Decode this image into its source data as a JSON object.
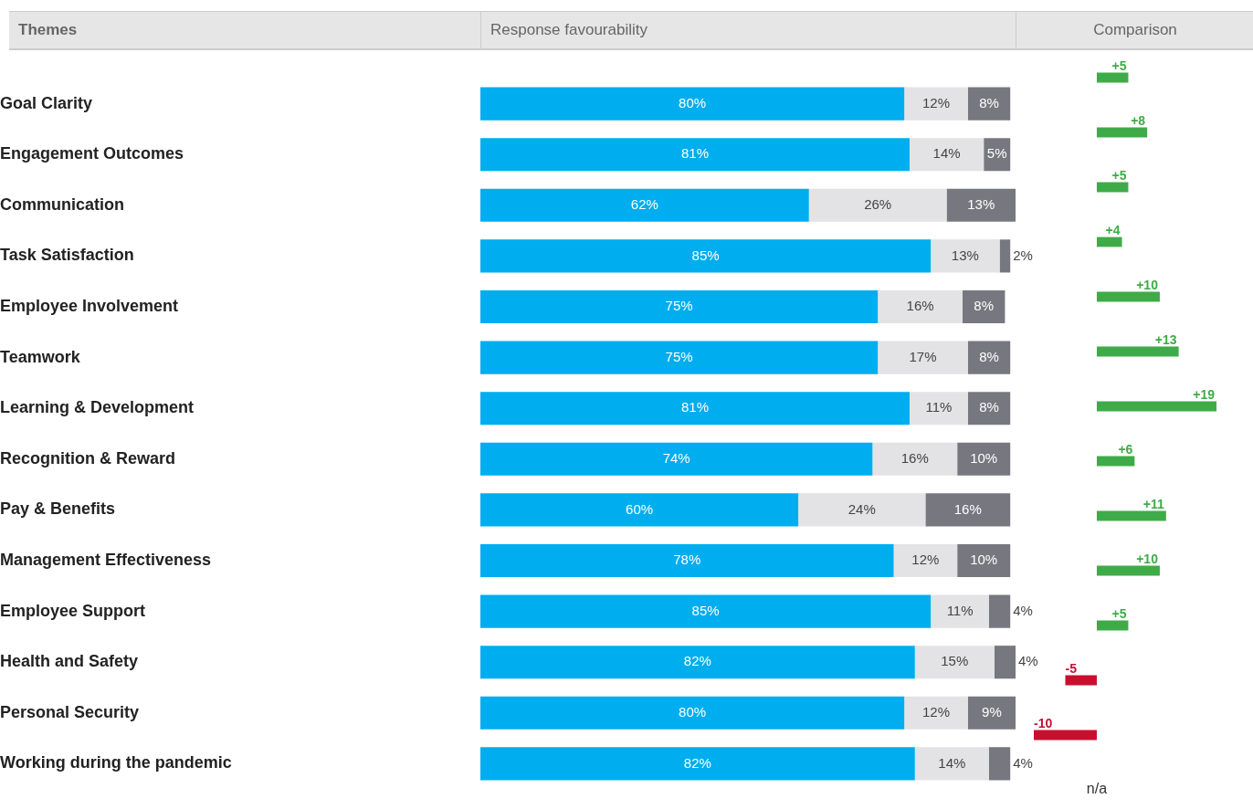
{
  "chart_data": [
    {
      "type": "bar",
      "title": "Response favourability",
      "ylabel": "Themes",
      "orientation": "horizontal",
      "stacked": true,
      "legend": false,
      "tick_labels": "y",
      "categories": [
        "Goal Clarity",
        "Engagement Outcomes",
        "Communication",
        "Task Satisfaction",
        "Employee Involvement",
        "Teamwork",
        "Learning & Development",
        "Recognition & Reward",
        "Pay & Benefits",
        "Management Effectiveness",
        "Employee Support",
        "Health and Safety",
        "Personal Security",
        "Working during the pandemic"
      ],
      "series": [
        {
          "color": "#00adef",
          "values": [
            80,
            81,
            62,
            85,
            75,
            75,
            81,
            74,
            60,
            78,
            85,
            82,
            80,
            82
          ],
          "value_labels": [
            "80%",
            "81%",
            "62%",
            "85%",
            "75%",
            "75%",
            "81%",
            "74%",
            "60%",
            "78%",
            "85%",
            "82%",
            "80%",
            "82%"
          ]
        },
        {
          "color": "#e3e3e5",
          "values": [
            12,
            14,
            26,
            13,
            16,
            17,
            11,
            16,
            24,
            12,
            11,
            15,
            12,
            14
          ],
          "value_labels": [
            "12%",
            "14%",
            "26%",
            "13%",
            "16%",
            "17%",
            "11%",
            "16%",
            "24%",
            "12%",
            "11%",
            "15%",
            "12%",
            "14%"
          ]
        },
        {
          "color": "#77777f",
          "values": [
            8,
            5,
            13,
            2,
            8,
            8,
            8,
            10,
            16,
            10,
            4,
            4,
            9,
            4
          ],
          "value_labels": [
            "8%",
            "5%",
            "13%",
            "2%",
            "8%",
            "8%",
            "8%",
            "10%",
            "16%",
            "10%",
            "4%",
            "4%",
            "9%",
            "4%"
          ]
        }
      ]
    },
    {
      "type": "bar",
      "title": "Comparison",
      "orientation": "horizontal",
      "legend": false,
      "tick_labels": false,
      "categories": [
        null,
        null,
        null,
        null,
        null,
        null,
        null,
        null,
        null,
        null,
        null,
        null,
        null,
        null
      ],
      "values": [
        5,
        8,
        5,
        4,
        10,
        13,
        19,
        6,
        11,
        10,
        5,
        -5,
        -10,
        null
      ],
      "value_labels": [
        "+5",
        "+8",
        "+5",
        "+4",
        "+10",
        "+13",
        "+19",
        "+6",
        "+11",
        "+10",
        "+5",
        "-5",
        "-10",
        "n/a"
      ],
      "colors": [
        "#3fab48",
        "#3fab48",
        "#3fab48",
        "#3fab48",
        "#3fab48",
        "#3fab48",
        "#3fab48",
        "#3fab48",
        "#3fab48",
        "#3fab48",
        "#3fab48",
        "#c8102e",
        "#c8102e",
        null
      ]
    }
  ]
}
